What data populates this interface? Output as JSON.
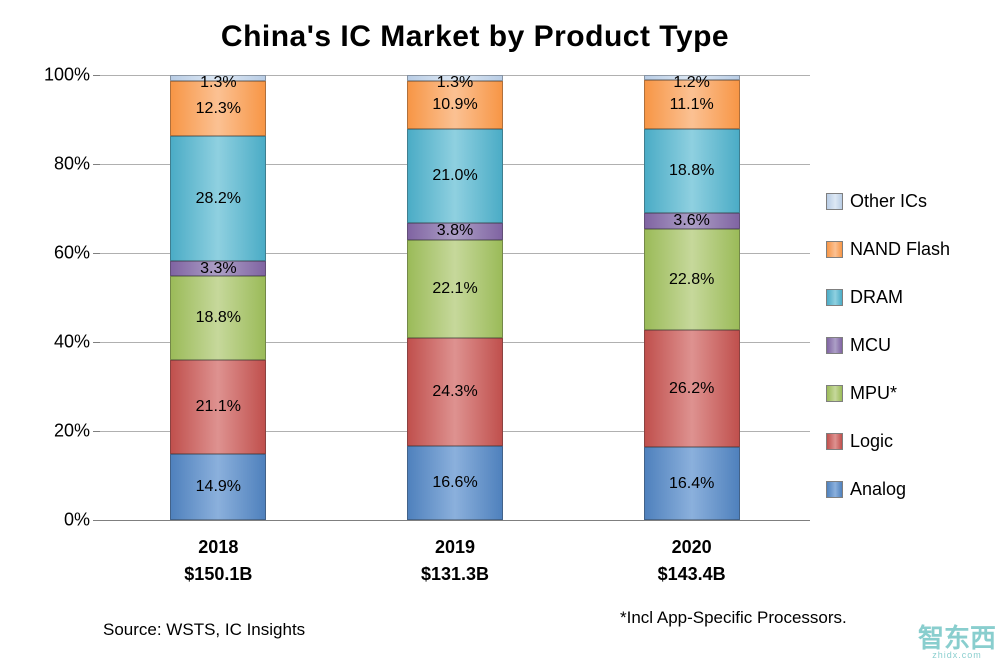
{
  "title": "China's IC Market by Product Type",
  "source_note": "Source:  WSTS, IC Insights",
  "footnote": "*Incl App-Specific Processors.",
  "watermark": {
    "main": "智东西",
    "sub": "zhidx.com"
  },
  "chart_data": {
    "type": "bar",
    "subtype": "stacked-percentage",
    "title": "China's IC Market by Product Type",
    "categories": [
      "2018",
      "2019",
      "2020"
    ],
    "category_sublabels": [
      "$150.1B",
      "$131.3B",
      "$143.4B"
    ],
    "series": [
      {
        "name": "Analog",
        "color": "#4F81BD",
        "color_light": "#8BB0DC",
        "values": [
          14.9,
          16.6,
          16.4
        ]
      },
      {
        "name": "Logic",
        "color": "#C0504D",
        "color_light": "#DE9290",
        "values": [
          21.1,
          24.3,
          26.2
        ]
      },
      {
        "name": "MPU*",
        "color": "#9BBB59",
        "color_light": "#C6D89B",
        "values": [
          18.8,
          22.1,
          22.8
        ]
      },
      {
        "name": "MCU",
        "color": "#8064A2",
        "color_light": "#AC9FC6",
        "values": [
          3.3,
          3.8,
          3.6
        ]
      },
      {
        "name": "DRAM",
        "color": "#4BACC6",
        "color_light": "#8FD0E0",
        "values": [
          28.2,
          21.0,
          18.8
        ]
      },
      {
        "name": "NAND Flash",
        "color": "#F79646",
        "color_light": "#FBC193",
        "values": [
          12.3,
          10.9,
          11.1
        ]
      },
      {
        "name": "Other ICs",
        "color": "#B9CDE5",
        "color_light": "#DDE8F4",
        "values": [
          1.3,
          1.3,
          1.2
        ]
      }
    ],
    "legend_order_top_to_bottom": [
      "Other ICs",
      "NAND Flash",
      "DRAM",
      "MCU",
      "MPU*",
      "Logic",
      "Analog"
    ],
    "ylim": [
      0,
      100
    ],
    "ytick_step": 20,
    "ytick_labels": [
      "0%",
      "20%",
      "40%",
      "60%",
      "80%",
      "100%"
    ],
    "value_label_format": "{value}%",
    "grid": true,
    "legend_position": "right"
  }
}
